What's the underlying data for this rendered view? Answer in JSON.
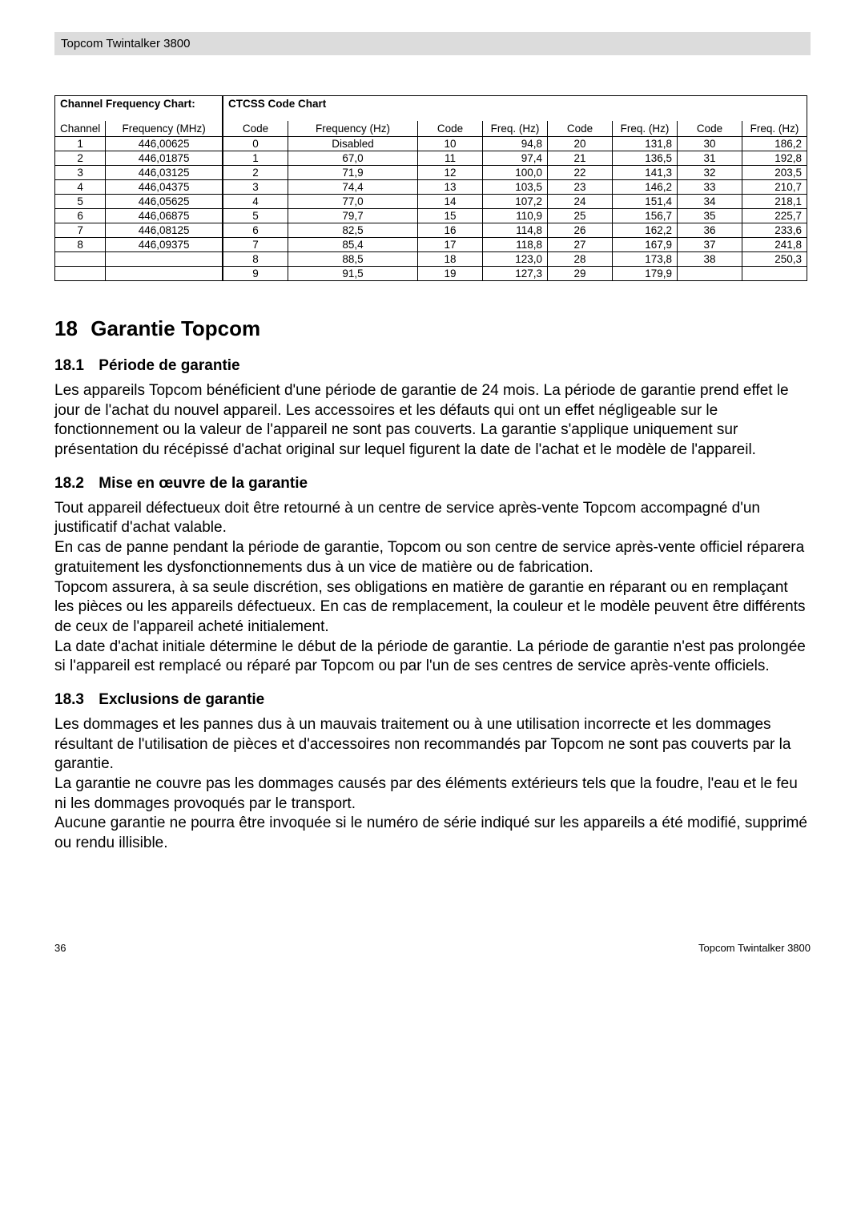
{
  "header": "Topcom Twintalker 3800",
  "freq_chart": {
    "title": "Channel Frequency Chart:",
    "headers": [
      "Channel",
      "Frequency (MHz)"
    ],
    "rows": [
      [
        "1",
        "446,00625"
      ],
      [
        "2",
        "446,01875"
      ],
      [
        "3",
        "446,03125"
      ],
      [
        "4",
        "446,04375"
      ],
      [
        "5",
        "446,05625"
      ],
      [
        "6",
        "446,06875"
      ],
      [
        "7",
        "446,08125"
      ],
      [
        "8",
        "446,09375"
      ],
      [
        "",
        ""
      ],
      [
        "",
        ""
      ]
    ]
  },
  "ctcss_chart": {
    "title": "CTCSS Code Chart",
    "headers": [
      "Code",
      "Frequency (Hz)",
      "Code",
      "Freq. (Hz)",
      "Code",
      "Freq. (Hz)",
      "Code",
      "Freq. (Hz)"
    ],
    "rows": [
      [
        "0",
        "Disabled",
        "10",
        "94,8",
        "20",
        "131,8",
        "30",
        "186,2"
      ],
      [
        "1",
        "67,0",
        "11",
        "97,4",
        "21",
        "136,5",
        "31",
        "192,8"
      ],
      [
        "2",
        "71,9",
        "12",
        "100,0",
        "22",
        "141,3",
        "32",
        "203,5"
      ],
      [
        "3",
        "74,4",
        "13",
        "103,5",
        "23",
        "146,2",
        "33",
        "210,7"
      ],
      [
        "4",
        "77,0",
        "14",
        "107,2",
        "24",
        "151,4",
        "34",
        "218,1"
      ],
      [
        "5",
        "79,7",
        "15",
        "110,9",
        "25",
        "156,7",
        "35",
        "225,7"
      ],
      [
        "6",
        "82,5",
        "16",
        "114,8",
        "26",
        "162,2",
        "36",
        "233,6"
      ],
      [
        "7",
        "85,4",
        "17",
        "118,8",
        "27",
        "167,9",
        "37",
        "241,8"
      ],
      [
        "8",
        "88,5",
        "18",
        "123,0",
        "28",
        "173,8",
        "38",
        "250,3"
      ],
      [
        "9",
        "91,5",
        "19",
        "127,3",
        "29",
        "179,9",
        "",
        ""
      ]
    ]
  },
  "section_main": {
    "num": "18",
    "title": "Garantie Topcom"
  },
  "s1": {
    "num": "18.1",
    "title": "Période de garantie",
    "p": "Les appareils Topcom bénéficient d'une période de garantie de 24 mois. La période de garantie prend effet le jour de l'achat du nouvel appareil. Les accessoires et les défauts qui ont un effet négligeable sur le fonctionnement ou la valeur de l'appareil ne sont pas couverts. La garantie s'applique uniquement sur présentation du récépissé d'achat original sur lequel figurent la date de l'achat et le modèle de l'appareil."
  },
  "s2": {
    "num": "18.2",
    "title": "Mise en œuvre de la garantie",
    "p1": "Tout appareil défectueux doit être retourné à un centre de service après-vente Topcom accompagné d'un justificatif d'achat valable.",
    "p2": "En cas de panne pendant la période de garantie, Topcom ou son centre de service après-vente officiel réparera gratuitement les dysfonctionnements dus à un vice de matière ou de fabrication.",
    "p3": "Topcom assurera, à sa seule discrétion, ses obligations en matière de garantie en réparant ou en remplaçant les pièces ou les appareils défectueux. En cas de remplacement, la couleur et le modèle peuvent être différents de ceux de l'appareil acheté initialement.",
    "p4": "La date d'achat initiale détermine le début de la période de garantie. La période de garantie n'est pas prolongée si l'appareil est remplacé ou réparé par Topcom ou par l'un de ses centres de service après-vente officiels."
  },
  "s3": {
    "num": "18.3",
    "title": "Exclusions de garantie",
    "p1": "Les dommages et les pannes dus à un mauvais traitement ou à une utilisation incorrecte et les dommages résultant de l'utilisation de pièces et d'accessoires non recommandés par Topcom ne sont pas couverts par la garantie.",
    "p2": "La garantie ne couvre pas les dommages causés par des éléments extérieurs tels que la foudre, l'eau et le feu ni les dommages provoqués par le transport.",
    "p3": "Aucune garantie ne pourra être invoquée si le numéro de série indiqué sur les appareils a été modifié, supprimé ou rendu illisible."
  },
  "footer": {
    "page": "36",
    "label": "Topcom Twintalker 3800"
  }
}
